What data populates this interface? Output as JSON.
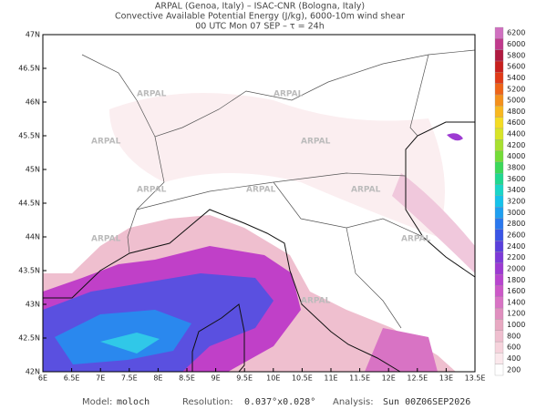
{
  "header": {
    "line1": "ARPAL (Genoa, Italy)  –  ISAC-CNR (Bologna, Italy)",
    "line2": "Convective Available Potential Energy (J/kg), 6000-10m wind shear",
    "line3": "00 UTC Mon 07 SEP  –  τ = 24h"
  },
  "map": {
    "watermark": "ARPAL",
    "lat_labels": [
      "47N",
      "46.5N",
      "46N",
      "45.5N",
      "45N",
      "44.5N",
      "44N",
      "43.5N",
      "43N",
      "42.5N",
      "42N"
    ],
    "lon_labels": [
      "6E",
      "6.5E",
      "7E",
      "7.5E",
      "8E",
      "8.5E",
      "9E",
      "9.5E",
      "10E",
      "10.5E",
      "11E",
      "11.5E",
      "12E",
      "12.5E",
      "13E",
      "13.5E"
    ]
  },
  "colorbar": {
    "levels": [
      200,
      400,
      600,
      800,
      1000,
      1200,
      1400,
      1600,
      1800,
      2000,
      2200,
      2400,
      2600,
      2800,
      3000,
      3200,
      3400,
      3600,
      3800,
      4000,
      4200,
      4400,
      4600,
      4800,
      5000,
      5200,
      5400,
      5600,
      5800,
      6000,
      6200
    ],
    "colors": [
      "#ffffff",
      "#fbe8ec",
      "#f6d3dc",
      "#efbfcf",
      "#e8a9c2",
      "#e08fbf",
      "#d873c4",
      "#cc58c8",
      "#b845cf",
      "#9d3ad2",
      "#7d3ad8",
      "#5a40dc",
      "#3a55e6",
      "#2a78ee",
      "#1f9ff0",
      "#16c2ea",
      "#1ad6c8",
      "#20d890",
      "#3cd85a",
      "#74dc38",
      "#a8e030",
      "#d8e428",
      "#f4dc24",
      "#f8b820",
      "#f4901c",
      "#ee6418",
      "#e03a18",
      "#c8201e",
      "#b01a40",
      "#c03a8c",
      "#d070c0"
    ]
  },
  "footer": {
    "model_label": "Model:",
    "model": "moloch",
    "resolution_label": "Resolution:",
    "resolution": "0.037°x0.028°",
    "analysis_label": "Analysis:",
    "analysis": "Sun 00Z06SEP2026"
  }
}
